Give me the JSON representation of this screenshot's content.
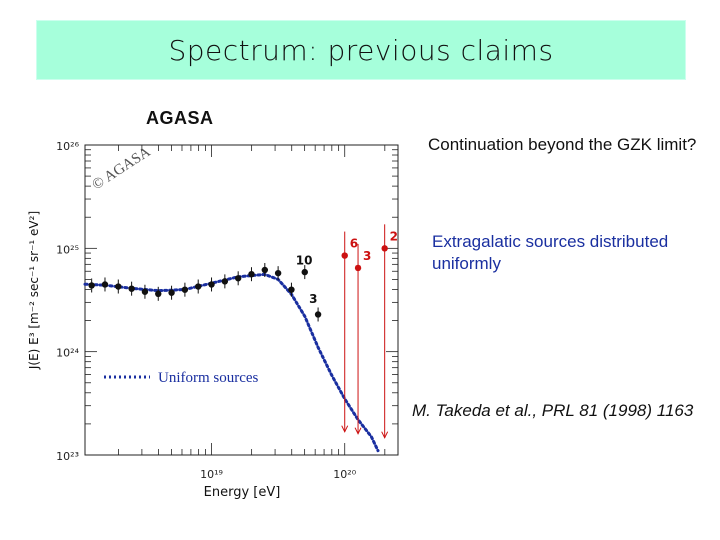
{
  "header": {
    "title": "Spectrum: previous claims"
  },
  "labels": {
    "experiment": "AGASA",
    "question": "Continuation beyond the GZK limit?",
    "model": "Extragalatic sources distributed uniformly",
    "reference": "M. Takeda et al., PRL 81 (1998) 1163"
  },
  "chart_data": {
    "type": "scatter",
    "title": "",
    "xlabel": "Energy [eV]",
    "ylabel": "J(E) E³ [m⁻² sec⁻¹ sr⁻¹ eV²]",
    "xscale": "log",
    "yscale": "log",
    "xlim": [
      1.122e+18,
      2.512e+20
    ],
    "ylim": [
      1e+23,
      1e+26
    ],
    "x_ticks": [
      {
        "value": 1e+19,
        "label": "10¹⁹"
      },
      {
        "value": 1e+20,
        "label": "10²⁰"
      }
    ],
    "y_ticks": [
      {
        "value": 1e+23,
        "label": "10²³"
      },
      {
        "value": 1e+24,
        "label": "10²⁴"
      },
      {
        "value": 1e+25,
        "label": "10²⁵"
      },
      {
        "value": 1e+26,
        "label": "10²⁶"
      }
    ],
    "watermark": "© AGASA",
    "legend": "bottom-left",
    "series": [
      {
        "kind": "data",
        "color": "#111111",
        "points": [
          {
            "x": 1.259e+18,
            "y": 4.37e+24
          },
          {
            "x": 1.585e+18,
            "y": 4.47e+24
          },
          {
            "x": 1.995e+18,
            "y": 4.27e+24
          },
          {
            "x": 2.512e+18,
            "y": 4.07e+24
          },
          {
            "x": 3.162e+18,
            "y": 3.8e+24
          },
          {
            "x": 3.981e+18,
            "y": 3.63e+24
          },
          {
            "x": 5.012e+18,
            "y": 3.72e+24
          },
          {
            "x": 6.31e+18,
            "y": 3.98e+24
          },
          {
            "x": 7.943e+18,
            "y": 4.27e+24
          },
          {
            "x": 1e+19,
            "y": 4.47e+24
          },
          {
            "x": 1.259e+19,
            "y": 4.79e+24
          },
          {
            "x": 1.585e+19,
            "y": 5.13e+24
          },
          {
            "x": 1.995e+19,
            "y": 5.62e+24
          },
          {
            "x": 2.512e+19,
            "y": 6.17e+24
          },
          {
            "x": 3.162e+19,
            "y": 5.75e+24
          },
          {
            "x": 3.981e+19,
            "y": 3.98e+24
          },
          {
            "x": 5.012e+19,
            "y": 5.89e+24
          },
          {
            "x": 6.31e+19,
            "y": 2.29e+24
          }
        ]
      },
      {
        "kind": "data",
        "color": "#cc1111",
        "points": [
          {
            "x": 1e+20,
            "y": 8.51e+24,
            "label": "6"
          },
          {
            "x": 1.259e+20,
            "y": 6.46e+24,
            "label": "3"
          },
          {
            "x": 1.995e+20,
            "y": 1e+25,
            "label": "2"
          }
        ]
      },
      {
        "kind": "count-labels",
        "color": "#111111",
        "points": [
          {
            "x": 5.012e+19,
            "y": 7e+24,
            "label": "10"
          },
          {
            "x": 6.31e+19,
            "y": 2.95e+24,
            "label": "3"
          }
        ]
      },
      {
        "name": "Uniform sources",
        "kind": "model",
        "style": "dotted",
        "color": "#1a2fa0",
        "points": [
          {
            "x": 1.122e+18,
            "y": 4.5e+24
          },
          {
            "x": 1.585e+18,
            "y": 4.4e+24
          },
          {
            "x": 2.512e+18,
            "y": 4.1e+24
          },
          {
            "x": 3.981e+18,
            "y": 3.89e+24
          },
          {
            "x": 6.31e+18,
            "y": 4e+24
          },
          {
            "x": 1e+19,
            "y": 4.6e+24
          },
          {
            "x": 1.585e+19,
            "y": 5.3e+24
          },
          {
            "x": 2.512e+19,
            "y": 5.6e+24
          },
          {
            "x": 3.162e+19,
            "y": 5e+24
          },
          {
            "x": 3.981e+19,
            "y": 3.6e+24
          },
          {
            "x": 5.012e+19,
            "y": 2.2e+24
          },
          {
            "x": 6.31e+19,
            "y": 1.1e+24
          },
          {
            "x": 7.943e+19,
            "y": 6e+23
          },
          {
            "x": 1e+20,
            "y": 3.5e+23
          },
          {
            "x": 1.259e+20,
            "y": 2.2e+23
          },
          {
            "x": 1.585e+20,
            "y": 1.5e+23
          },
          {
            "x": 1.778e+20,
            "y": 1.1e+23
          }
        ]
      }
    ]
  }
}
